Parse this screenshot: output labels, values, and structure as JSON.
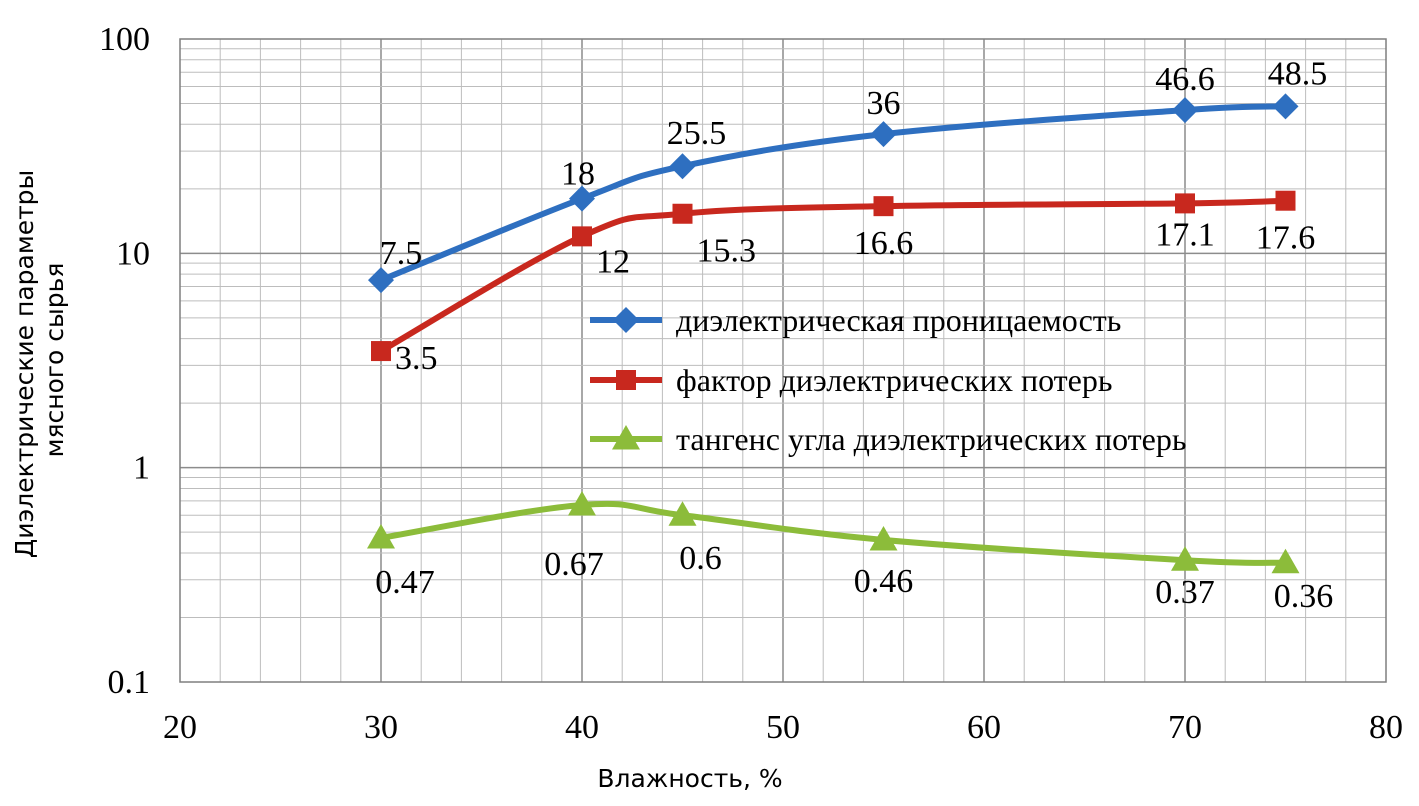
{
  "chart_data": {
    "type": "line",
    "xlabel": "Влажность, %",
    "ylabel_lines": [
      "Диэлектрические параметры",
      "мясного сырья"
    ],
    "x_scale": "linear",
    "y_scale": "log",
    "xlim": [
      20,
      80
    ],
    "ylim": [
      0.1,
      100
    ],
    "x_ticks": [
      20,
      30,
      40,
      50,
      60,
      70,
      80
    ],
    "x_tick_labels": [
      "20",
      "30",
      "40",
      "50",
      "60",
      "70",
      "80"
    ],
    "y_ticks": [
      0.1,
      1,
      10,
      100
    ],
    "y_tick_labels": [
      "0.1",
      "1",
      "10",
      "100"
    ],
    "grid": true,
    "legend_position": "center-right",
    "x": [
      30,
      40,
      45,
      55,
      70,
      75
    ],
    "series": [
      {
        "name": "диэлектрическая проницаемость",
        "values": [
          7.5,
          18,
          25.5,
          36,
          46.6,
          48.5
        ],
        "labels": [
          "7.5",
          "18",
          "25.5",
          "36",
          "46.6",
          "48.5"
        ],
        "color": "#2e6fc0",
        "marker": "diamond"
      },
      {
        "name": "фактор диэлектрических потерь",
        "values": [
          3.5,
          12,
          15.3,
          16.6,
          17.1,
          17.6
        ],
        "labels": [
          "3.5",
          "12",
          "15.3",
          "16.6",
          "17.1",
          "17.6"
        ],
        "color": "#c8281e",
        "marker": "square"
      },
      {
        "name": "тангенс угла диэлектрических потерь",
        "values": [
          0.47,
          0.67,
          0.6,
          0.46,
          0.37,
          0.36
        ],
        "labels": [
          "0.47",
          "0.67",
          "0.6",
          "0.46",
          "0.37",
          "0.36"
        ],
        "color": "#8cbc3a",
        "marker": "triangle"
      }
    ]
  }
}
